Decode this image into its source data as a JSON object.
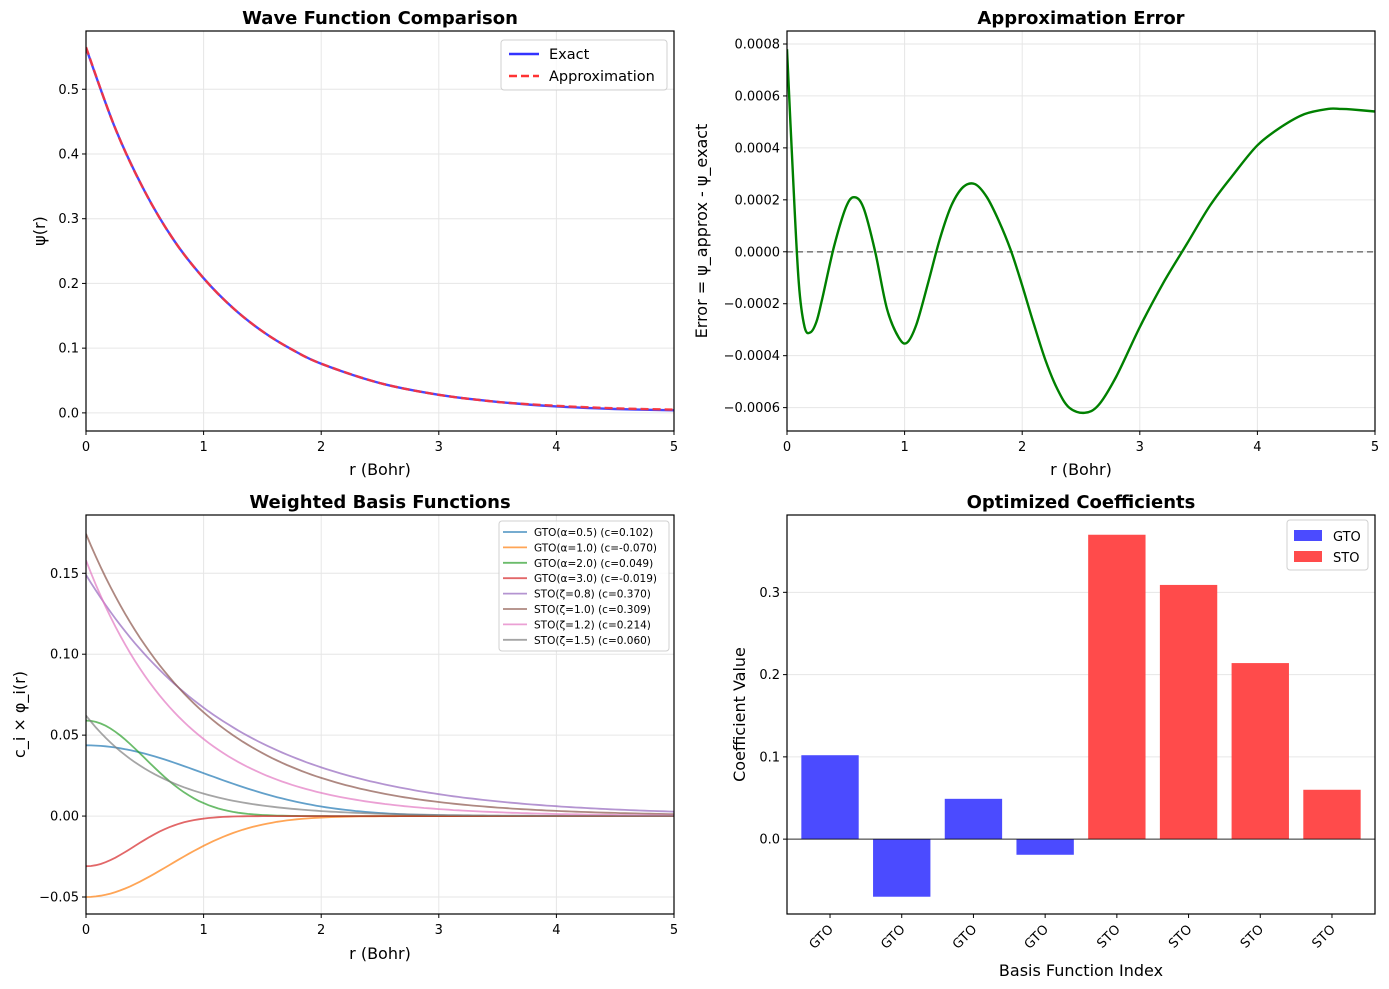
{
  "chart_data": [
    {
      "id": "wave",
      "type": "line",
      "title": "Wave Function Comparison",
      "xlabel": "r (Bohr)",
      "ylabel": "ψ(r)",
      "xlim": [
        0,
        5
      ],
      "ylim": [
        -0.028,
        0.59
      ],
      "xticks": [
        "0",
        "1",
        "2",
        "3",
        "4",
        "5"
      ],
      "xtick_values": [
        0,
        1,
        2,
        3,
        4,
        5
      ],
      "yticks": [
        "0.0",
        "0.1",
        "0.2",
        "0.3",
        "0.4",
        "0.5"
      ],
      "ytick_values": [
        0,
        0.1,
        0.2,
        0.3,
        0.4,
        0.5
      ],
      "grid": true,
      "legend_position": "top-right",
      "series": [
        {
          "name": "Exact",
          "color": "#3333ff",
          "style": "solid",
          "x": [
            0,
            0.25,
            0.5,
            0.75,
            1.0,
            1.25,
            1.5,
            1.75,
            2.0,
            2.5,
            3.0,
            3.5,
            4.0,
            4.5,
            5.0
          ],
          "y": [
            0.564,
            0.439,
            0.342,
            0.266,
            0.208,
            0.162,
            0.126,
            0.098,
            0.076,
            0.046,
            0.028,
            0.017,
            0.01,
            0.006,
            0.004
          ]
        },
        {
          "name": "Approximation",
          "color": "#ff3333",
          "style": "dashed",
          "x": [
            0,
            0.25,
            0.5,
            0.75,
            1.0,
            1.25,
            1.5,
            1.75,
            2.0,
            2.5,
            3.0,
            3.5,
            4.0,
            4.5,
            5.0
          ],
          "y": [
            0.565,
            0.439,
            0.342,
            0.266,
            0.208,
            0.162,
            0.126,
            0.098,
            0.076,
            0.046,
            0.028,
            0.017,
            0.011,
            0.007,
            0.005
          ]
        }
      ]
    },
    {
      "id": "error",
      "type": "line",
      "title": "Approximation Error",
      "xlabel": "r (Bohr)",
      "ylabel": "Error = ψ_approx - ψ_exact",
      "xlim": [
        0,
        5
      ],
      "ylim": [
        -0.00069,
        0.00085
      ],
      "xticks": [
        "0",
        "1",
        "2",
        "3",
        "4",
        "5"
      ],
      "xtick_values": [
        0,
        1,
        2,
        3,
        4,
        5
      ],
      "yticks": [
        "−0.0006",
        "−0.0004",
        "−0.0002",
        "0.0000",
        "0.0002",
        "0.0004",
        "0.0006",
        "0.0008"
      ],
      "ytick_values": [
        -0.0006,
        -0.0004,
        -0.0002,
        0,
        0.0002,
        0.0004,
        0.0006,
        0.0008
      ],
      "grid": true,
      "reference_line": {
        "y": 0,
        "color": "#808080",
        "style": "dashed"
      },
      "series": [
        {
          "name": "Error",
          "color": "#008000",
          "style": "solid",
          "x": [
            0,
            0.05,
            0.1,
            0.15,
            0.2,
            0.25,
            0.3,
            0.4,
            0.5,
            0.57,
            0.65,
            0.75,
            0.85,
            0.95,
            1.02,
            1.1,
            1.2,
            1.3,
            1.4,
            1.5,
            1.6,
            1.7,
            1.8,
            1.9,
            2.0,
            2.1,
            2.2,
            2.3,
            2.4,
            2.53,
            2.65,
            2.8,
            3.0,
            3.2,
            3.4,
            3.6,
            3.8,
            4.0,
            4.2,
            4.4,
            4.6,
            4.7,
            4.8,
            5.0
          ],
          "y": [
            0.00078,
            0.0003,
            -0.00012,
            -0.00029,
            -0.00031,
            -0.00027,
            -0.00018,
            2e-05,
            0.00017,
            0.00021,
            0.00017,
            0.0,
            -0.00022,
            -0.00033,
            -0.00035,
            -0.00028,
            -0.00012,
            5e-05,
            0.00018,
            0.00025,
            0.00026,
            0.00021,
            0.00012,
            1e-05,
            -0.00013,
            -0.00028,
            -0.00042,
            -0.00053,
            -0.0006,
            -0.00062,
            -0.00059,
            -0.00048,
            -0.00029,
            -0.00012,
            3e-05,
            0.00018,
            0.0003,
            0.00041,
            0.00048,
            0.00053,
            0.00055,
            0.00055,
            0.000548,
            0.00054
          ]
        }
      ]
    },
    {
      "id": "basis",
      "type": "line",
      "title": "Weighted Basis Functions",
      "xlabel": "r (Bohr)",
      "ylabel": "c_i × φ_i(r)",
      "xlim": [
        0,
        5
      ],
      "ylim": [
        -0.0605,
        0.186
      ],
      "xticks": [
        "0",
        "1",
        "2",
        "3",
        "4",
        "5"
      ],
      "xtick_values": [
        0,
        1,
        2,
        3,
        4,
        5
      ],
      "yticks": [
        "−0.05",
        "0.00",
        "0.05",
        "0.10",
        "0.15"
      ],
      "ytick_values": [
        -0.05,
        0,
        0.05,
        0.1,
        0.15
      ],
      "grid": true,
      "legend_position": "top-right",
      "series": [
        {
          "name": "GTO(α=0.5) (c=0.102)",
          "color": "#1f77b4",
          "kind": "gto",
          "param": 0.5,
          "amp": 0.0437
        },
        {
          "name": "GTO(α=1.0) (c=-0.070)",
          "color": "#ff7f0e",
          "kind": "gto",
          "param": 1.0,
          "amp": -0.05
        },
        {
          "name": "GTO(α=2.0) (c=0.049)",
          "color": "#2ca02c",
          "kind": "gto",
          "param": 2.0,
          "amp": 0.059
        },
        {
          "name": "GTO(α=3.0) (c=-0.019)",
          "color": "#d62728",
          "kind": "gto",
          "param": 3.0,
          "amp": -0.031
        },
        {
          "name": "STO(ζ=0.8) (c=0.370)",
          "color": "#9467bd",
          "kind": "sto",
          "param": 0.8,
          "amp": 0.149
        },
        {
          "name": "STO(ζ=1.0) (c=0.309)",
          "color": "#8c564b",
          "kind": "sto",
          "param": 1.0,
          "amp": 0.1743
        },
        {
          "name": "STO(ζ=1.2) (c=0.214)",
          "color": "#e377c2",
          "kind": "sto",
          "param": 1.2,
          "amp": 0.158
        },
        {
          "name": "STO(ζ=1.5) (c=0.060)",
          "color": "#7f7f7f",
          "kind": "sto",
          "param": 1.5,
          "amp": 0.0621
        }
      ]
    },
    {
      "id": "coeffs",
      "type": "bar",
      "title": "Optimized Coefficients",
      "xlabel": "Basis Function Index",
      "ylabel": "Coefficient Value",
      "ylim": [
        -0.091,
        0.394
      ],
      "yticks": [
        "0.0",
        "0.1",
        "0.2",
        "0.3"
      ],
      "ytick_values": [
        0,
        0.1,
        0.2,
        0.3
      ],
      "grid": true,
      "legend_position": "top-right",
      "categories": [
        "GTO",
        "GTO",
        "GTO",
        "GTO",
        "STO",
        "STO",
        "STO",
        "STO"
      ],
      "values": [
        0.102,
        -0.07,
        0.049,
        -0.019,
        0.37,
        0.309,
        0.214,
        0.06
      ],
      "legend": [
        {
          "name": "GTO",
          "color": "#4b4bff"
        },
        {
          "name": "STO",
          "color": "#ff4b4b"
        }
      ]
    }
  ]
}
